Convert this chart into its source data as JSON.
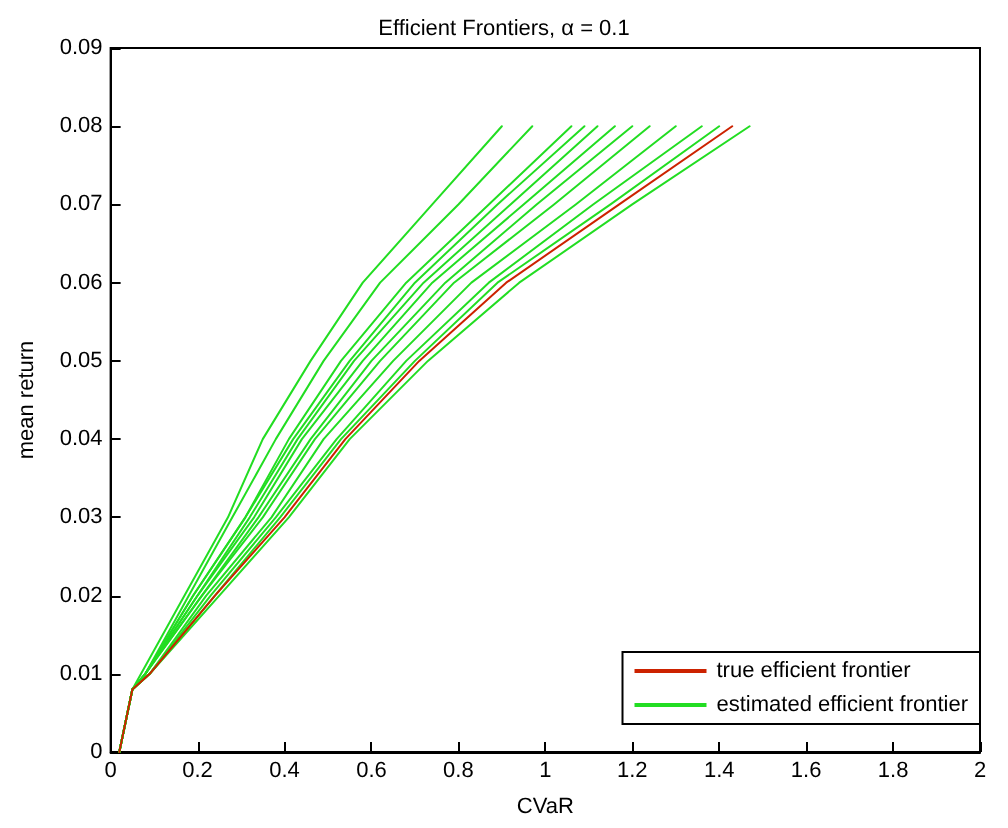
{
  "chart_data": {
    "type": "line",
    "title": "Efficient Frontiers, α = 0.1",
    "xlabel": "CVaR",
    "ylabel": "mean return",
    "xlim": [
      0,
      2
    ],
    "xticks": [
      0,
      0.2,
      0.4,
      0.6,
      0.8,
      1,
      1.2,
      1.4,
      1.6,
      1.8,
      2
    ],
    "ylim": [
      0,
      0.09
    ],
    "yticks": [
      0,
      0.01,
      0.02,
      0.03,
      0.04,
      0.05,
      0.06,
      0.07,
      0.08,
      0.09
    ],
    "grid": false,
    "legend": "bottom right",
    "marker": "none",
    "line_style": "solid",
    "series": [
      {
        "name": "true efficient frontier",
        "color": "#cc2200",
        "x": [
          0.02,
          0.05,
          0.09,
          0.24,
          0.4,
          0.54,
          0.71,
          0.91,
          1.17,
          1.43
        ],
        "values": [
          0,
          0.008,
          0.01,
          0.02,
          0.03,
          0.04,
          0.05,
          0.06,
          0.07,
          0.08
        ]
      },
      {
        "name": "estimated efficient frontier",
        "color": "#22dd22",
        "x": [
          0.02,
          0.05,
          0.07,
          0.17,
          0.27,
          0.35,
          0.46,
          0.58,
          0.74,
          0.9
        ],
        "values": [
          0,
          0.008,
          0.01,
          0.02,
          0.03,
          0.04,
          0.05,
          0.06,
          0.07,
          0.08
        ]
      },
      {
        "color": "#22dd22",
        "x": [
          0.02,
          0.05,
          0.08,
          0.18,
          0.28,
          0.38,
          0.49,
          0.62,
          0.8,
          0.97
        ],
        "values": [
          0,
          0.008,
          0.01,
          0.02,
          0.03,
          0.04,
          0.05,
          0.06,
          0.07,
          0.08
        ]
      },
      {
        "color": "#22dd22",
        "x": [
          0.02,
          0.05,
          0.08,
          0.19,
          0.31,
          0.41,
          0.53,
          0.68,
          0.87,
          1.06
        ],
        "values": [
          0,
          0.008,
          0.01,
          0.02,
          0.03,
          0.04,
          0.05,
          0.06,
          0.07,
          0.08
        ]
      },
      {
        "color": "#22dd22",
        "x": [
          0.02,
          0.05,
          0.08,
          0.19,
          0.31,
          0.42,
          0.55,
          0.7,
          0.89,
          1.09
        ],
        "values": [
          0,
          0.008,
          0.01,
          0.02,
          0.03,
          0.04,
          0.05,
          0.06,
          0.07,
          0.08
        ]
      },
      {
        "color": "#22dd22",
        "x": [
          0.02,
          0.05,
          0.08,
          0.2,
          0.32,
          0.43,
          0.56,
          0.72,
          0.92,
          1.12
        ],
        "values": [
          0,
          0.008,
          0.01,
          0.02,
          0.03,
          0.04,
          0.05,
          0.06,
          0.07,
          0.08
        ]
      },
      {
        "color": "#22dd22",
        "x": [
          0.02,
          0.05,
          0.08,
          0.2,
          0.33,
          0.44,
          0.58,
          0.74,
          0.95,
          1.16
        ],
        "values": [
          0,
          0.008,
          0.01,
          0.02,
          0.03,
          0.04,
          0.05,
          0.06,
          0.07,
          0.08
        ]
      },
      {
        "color": "#22dd22",
        "x": [
          0.02,
          0.05,
          0.08,
          0.21,
          0.34,
          0.46,
          0.6,
          0.77,
          0.98,
          1.2
        ],
        "values": [
          0,
          0.008,
          0.01,
          0.02,
          0.03,
          0.04,
          0.05,
          0.06,
          0.07,
          0.08
        ]
      },
      {
        "color": "#22dd22",
        "x": [
          0.02,
          0.05,
          0.08,
          0.21,
          0.35,
          0.47,
          0.62,
          0.79,
          1.02,
          1.24
        ],
        "values": [
          0,
          0.008,
          0.01,
          0.02,
          0.03,
          0.04,
          0.05,
          0.06,
          0.07,
          0.08
        ]
      },
      {
        "color": "#22dd22",
        "x": [
          0.02,
          0.05,
          0.09,
          0.22,
          0.37,
          0.49,
          0.65,
          0.83,
          1.07,
          1.3
        ],
        "values": [
          0,
          0.008,
          0.01,
          0.02,
          0.03,
          0.04,
          0.05,
          0.06,
          0.07,
          0.08
        ]
      },
      {
        "color": "#22dd22",
        "x": [
          0.02,
          0.05,
          0.09,
          0.23,
          0.38,
          0.52,
          0.68,
          0.87,
          1.11,
          1.36
        ],
        "values": [
          0,
          0.008,
          0.01,
          0.02,
          0.03,
          0.04,
          0.05,
          0.06,
          0.07,
          0.08
        ]
      },
      {
        "color": "#22dd22",
        "x": [
          0.02,
          0.05,
          0.09,
          0.24,
          0.39,
          0.53,
          0.7,
          0.89,
          1.15,
          1.4
        ],
        "values": [
          0,
          0.008,
          0.01,
          0.02,
          0.03,
          0.04,
          0.05,
          0.06,
          0.07,
          0.08
        ]
      },
      {
        "color": "#22dd22",
        "x": [
          0.02,
          0.05,
          0.09,
          0.25,
          0.41,
          0.55,
          0.73,
          0.94,
          1.2,
          1.47
        ],
        "values": [
          0,
          0.008,
          0.01,
          0.02,
          0.03,
          0.04,
          0.05,
          0.06,
          0.07,
          0.08
        ]
      }
    ]
  }
}
